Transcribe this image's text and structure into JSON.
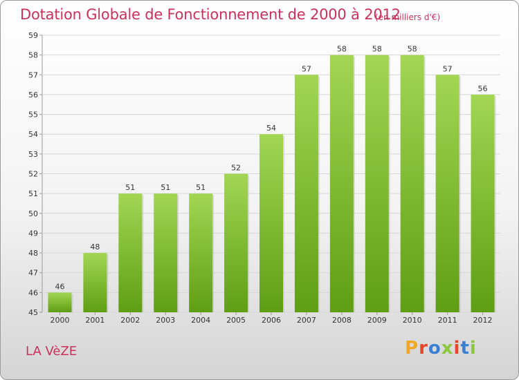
{
  "chart_data": {
    "type": "bar",
    "title": "Dotation Globale de Fonctionnement de 2000 à 2012",
    "subtitle": "(en milliers d'€)",
    "categories": [
      "2000",
      "2001",
      "2002",
      "2003",
      "2004",
      "2005",
      "2006",
      "2007",
      "2008",
      "2009",
      "2010",
      "2011",
      "2012"
    ],
    "values": [
      46,
      48,
      51,
      51,
      51,
      52,
      54,
      57,
      58,
      58,
      58,
      57,
      56
    ],
    "ylim": [
      45,
      59
    ],
    "yticks": [
      45,
      46,
      47,
      48,
      49,
      50,
      51,
      52,
      53,
      54,
      55,
      56,
      57,
      58,
      59
    ],
    "grid": true,
    "bar_color": "#7cbe32",
    "bar_color_light": "#9fd44e"
  },
  "footer": {
    "commune": "LA VèZE",
    "brand": "Proxiti",
    "brand_colors": [
      "#f5a623",
      "#e8452c",
      "#3b7fd4",
      "#8cc63f",
      "#e8452c",
      "#3b7fd4",
      "#8cc63f"
    ]
  }
}
